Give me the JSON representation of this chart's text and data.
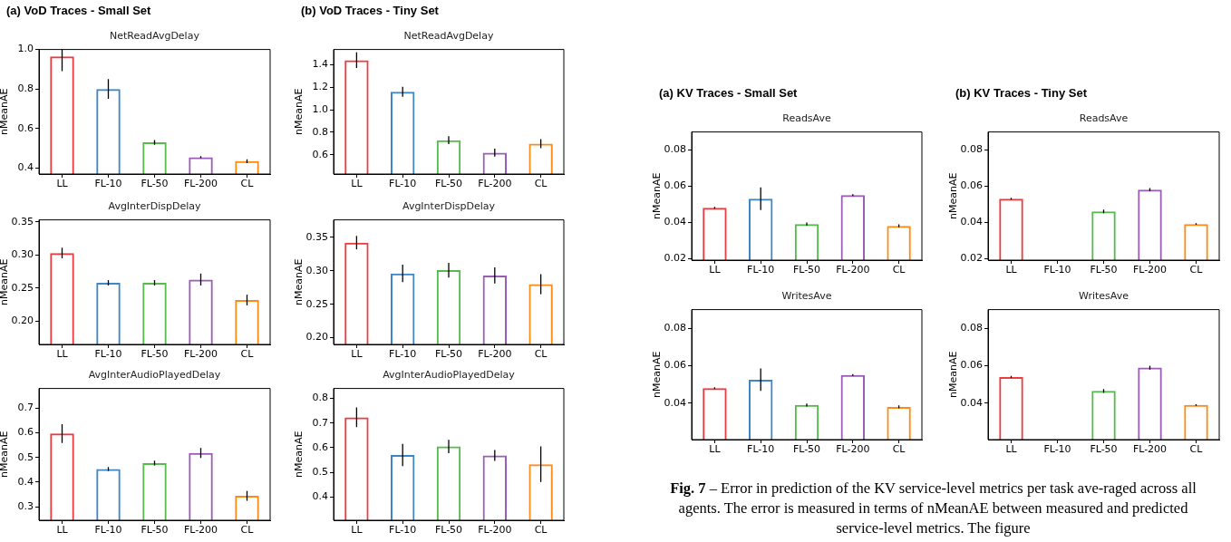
{
  "chart_data": [
    {
      "type": "bar",
      "title": "(a) VoD Traces - Small Set",
      "subtitle": "NetReadAvgDelay",
      "ylabel": "nMeanAE",
      "categories": [
        "LL",
        "FL-10",
        "FL-50",
        "FL-200",
        "CL"
      ],
      "values": [
        0.965,
        0.8,
        0.53,
        0.455,
        0.435
      ],
      "colors": [
        "#ee3b3f",
        "#3d86c8",
        "#55bb4c",
        "#9c5db8",
        "#ff8b17"
      ],
      "errors": [
        [
          0.89,
          1.0
        ],
        0.05,
        0.012,
        0.005,
        0.01
      ],
      "ylim": [
        0.37,
        1.0
      ],
      "yticks": [
        {
          "value": 0.4,
          "label": "0.4"
        },
        {
          "value": 0.6,
          "label": "0.6"
        },
        {
          "value": 0.8,
          "label": "0.8"
        },
        {
          "value": 1.0,
          "label": "1.0"
        }
      ]
    },
    {
      "type": "bar",
      "subtitle": "AvgInterDispDelay",
      "ylabel": "nMeanAE",
      "categories": [
        "LL",
        "FL-10",
        "FL-50",
        "FL-200",
        "CL"
      ],
      "values": [
        0.303,
        0.258,
        0.258,
        0.263,
        0.232
      ],
      "colors": [
        "#ee3b3f",
        "#3d86c8",
        "#55bb4c",
        "#9c5db8",
        "#ff8b17"
      ],
      "errors": [
        0.008,
        0.004,
        0.004,
        0.009,
        0.008
      ],
      "ylim": [
        0.165,
        0.353
      ],
      "yticks": [
        {
          "value": 0.2,
          "label": "0.20"
        },
        {
          "value": 0.25,
          "label": "0.25"
        },
        {
          "value": 0.3,
          "label": "0.30"
        },
        0.35
      ]
    },
    {
      "type": "bar",
      "subtitle": "AvgInterAudioPlayedDelay",
      "ylabel": "nMeanAE",
      "categories": [
        "LL",
        "FL-10",
        "FL-50",
        "FL-200",
        "CL"
      ],
      "values": [
        0.597,
        0.453,
        0.477,
        0.518,
        0.344
      ],
      "colors": [
        "#ee3b3f",
        "#3d86c8",
        "#55bb4c",
        "#9c5db8",
        "#ff8b17"
      ],
      "errors": [
        0.038,
        0.008,
        0.01,
        0.02,
        0.02
      ],
      "ylim": [
        0.245,
        0.78
      ],
      "yticks": [
        0.3,
        0.4,
        0.5,
        0.6,
        0.7
      ]
    },
    {
      "type": "bar",
      "title": "(b) VoD Traces - Tiny Set",
      "subtitle": "NetReadAvgDelay",
      "ylabel": "nMeanAE",
      "categories": [
        "LL",
        "FL-10",
        "FL-50",
        "FL-200",
        "CL"
      ],
      "values": [
        1.44,
        1.16,
        0.73,
        0.62,
        0.7
      ],
      "colors": [
        "#ee3b3f",
        "#3d86c8",
        "#55bb4c",
        "#9c5db8",
        "#ff8b17"
      ],
      "errors": [
        0.07,
        0.045,
        0.035,
        0.035,
        0.04
      ],
      "ylim": [
        0.43,
        1.535
      ],
      "yticks": [
        0.6,
        0.8,
        {
          "value": 1.0,
          "label": "1.0"
        },
        1.2,
        1.4
      ]
    },
    {
      "type": "bar",
      "subtitle": "AvgInterDispDelay",
      "ylabel": "nMeanAE",
      "categories": [
        "LL",
        "FL-10",
        "FL-50",
        "FL-200",
        "CL"
      ],
      "values": [
        0.342,
        0.296,
        0.301,
        0.293,
        0.28
      ],
      "colors": [
        "#ee3b3f",
        "#3d86c8",
        "#55bb4c",
        "#9c5db8",
        "#ff8b17"
      ],
      "errors": [
        0.01,
        0.013,
        0.011,
        0.012,
        0.015
      ],
      "ylim": [
        0.19,
        0.376
      ],
      "yticks": [
        {
          "value": 0.2,
          "label": "0.20"
        },
        0.25,
        {
          "value": 0.3,
          "label": "0.30"
        },
        0.35
      ]
    },
    {
      "type": "bar",
      "subtitle": "AvgInterAudioPlayedDelay",
      "ylabel": "nMeanAE",
      "categories": [
        "LL",
        "FL-10",
        "FL-50",
        "FL-200",
        "CL"
      ],
      "values": [
        0.723,
        0.57,
        0.605,
        0.569,
        0.533
      ],
      "colors": [
        "#ee3b3f",
        "#3d86c8",
        "#55bb4c",
        "#9c5db8",
        "#ff8b17"
      ],
      "errors": [
        0.04,
        0.045,
        0.027,
        0.022,
        0.072
      ],
      "ylim": [
        0.306,
        0.84
      ],
      "yticks": [
        0.4,
        0.5,
        0.6,
        0.7,
        0.8
      ]
    },
    {
      "type": "bar",
      "title": "(a) KV Traces - Small Set",
      "subtitle": "ReadsAve",
      "ylabel": "nMeanAE",
      "categories": [
        "LL",
        "FL-10",
        "FL-50",
        "FL-200",
        "CL"
      ],
      "values": [
        0.048,
        0.053,
        0.039,
        0.055,
        0.038
      ],
      "colors": [
        "#ee3b3f",
        "#3d86c8",
        "#55bb4c",
        "#9c5db8",
        "#ff8b17"
      ],
      "errors": [
        0.0005,
        0.0063,
        0.0008,
        0.0005,
        0.0008
      ],
      "ylim": [
        0.019,
        0.09
      ],
      "yticks": [
        0.02,
        0.04,
        0.06,
        0.08
      ]
    },
    {
      "type": "bar",
      "subtitle": "WritesAve",
      "ylabel": "nMeanAE",
      "categories": [
        "LL",
        "FL-10",
        "FL-50",
        "FL-200",
        "CL"
      ],
      "values": [
        0.048,
        0.0525,
        0.039,
        0.055,
        0.038
      ],
      "colors": [
        "#ee3b3f",
        "#3d86c8",
        "#55bb4c",
        "#9c5db8",
        "#ff8b17"
      ],
      "errors": [
        0.0005,
        0.006,
        0.0008,
        0.0005,
        0.0008
      ],
      "ylim": [
        0.0205,
        0.09
      ],
      "yticks": [
        0.04,
        0.06,
        0.08
      ]
    },
    {
      "type": "bar",
      "title": "(b) KV Traces - Tiny Set",
      "subtitle": "ReadsAve",
      "ylabel": "nMeanAE",
      "categories": [
        "LL",
        "FL-10",
        "FL-50",
        "FL-200",
        "CL"
      ],
      "values": [
        0.053,
        null,
        0.046,
        0.058,
        0.039
      ],
      "colors": [
        "#ee3b3f",
        "#3d86c8",
        "#55bb4c",
        "#9c5db8",
        "#ff8b17"
      ],
      "errors": [
        0.0005,
        null,
        0.001,
        0.0009,
        0.0004
      ],
      "ylim": [
        0.019,
        0.09
      ],
      "yticks": [
        0.02,
        0.04,
        0.06,
        0.08
      ]
    },
    {
      "type": "bar",
      "subtitle": "WritesAve",
      "ylabel": "nMeanAE",
      "categories": [
        "LL",
        "FL-10",
        "FL-50",
        "FL-200",
        "CL"
      ],
      "values": [
        0.054,
        null,
        0.0465,
        0.059,
        0.039
      ],
      "colors": [
        "#ee3b3f",
        "#3d86c8",
        "#55bb4c",
        "#9c5db8",
        "#ff8b17"
      ],
      "errors": [
        0.0005,
        null,
        0.001,
        0.001,
        0.0004
      ],
      "ylim": [
        0.0205,
        0.09
      ],
      "yticks": [
        0.04,
        0.06,
        0.08
      ]
    },
    {
      "type": "other",
      "annotations": [
        "Fig. 7",
        "– Error in prediction of the KV service-level metrics per task ave-raged across all agents. The error is measured in terms of nMeanAE between measured and predicted service-level metrics. The figure"
      ]
    }
  ]
}
